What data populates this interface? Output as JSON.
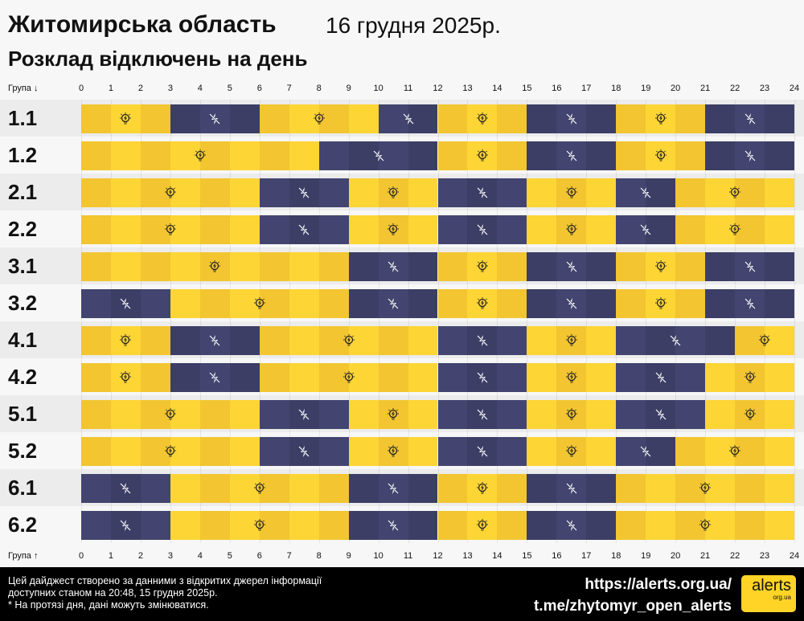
{
  "header": {
    "title": "Житомирська область",
    "date": "16 грудня 2025р.",
    "subtitle": "Розклад відключень на день"
  },
  "axis": {
    "top_label": "Група ↓",
    "bottom_label": "Група ↑",
    "ticks": [
      "0",
      "1",
      "2",
      "3",
      "4",
      "5",
      "6",
      "7",
      "8",
      "9",
      "10",
      "11",
      "12",
      "13",
      "14",
      "15",
      "16",
      "17",
      "18",
      "19",
      "20",
      "21",
      "22",
      "23",
      "24"
    ]
  },
  "colors": {
    "on": "#fdd535",
    "on_alt": "#f2c531",
    "off": "#3c3e66",
    "off_alt": "#434570"
  },
  "groups": [
    {
      "name": "1.1",
      "segments": [
        [
          0,
          3,
          "on"
        ],
        [
          3,
          6,
          "off"
        ],
        [
          6,
          10,
          "on"
        ],
        [
          10,
          12,
          "off"
        ],
        [
          12,
          15,
          "on"
        ],
        [
          15,
          18,
          "off"
        ],
        [
          18,
          21,
          "on"
        ],
        [
          21,
          24,
          "off"
        ]
      ]
    },
    {
      "name": "1.2",
      "segments": [
        [
          0,
          8,
          "on"
        ],
        [
          8,
          12,
          "off"
        ],
        [
          12,
          15,
          "on"
        ],
        [
          15,
          18,
          "off"
        ],
        [
          18,
          21,
          "on"
        ],
        [
          21,
          24,
          "off"
        ]
      ]
    },
    {
      "name": "2.1",
      "segments": [
        [
          0,
          6,
          "on"
        ],
        [
          6,
          9,
          "off"
        ],
        [
          9,
          12,
          "on"
        ],
        [
          12,
          15,
          "off"
        ],
        [
          15,
          18,
          "on"
        ],
        [
          18,
          20,
          "off"
        ],
        [
          20,
          24,
          "on"
        ]
      ]
    },
    {
      "name": "2.2",
      "segments": [
        [
          0,
          6,
          "on"
        ],
        [
          6,
          9,
          "off"
        ],
        [
          9,
          12,
          "on"
        ],
        [
          12,
          15,
          "off"
        ],
        [
          15,
          18,
          "on"
        ],
        [
          18,
          20,
          "off"
        ],
        [
          20,
          24,
          "on"
        ]
      ]
    },
    {
      "name": "3.1",
      "segments": [
        [
          0,
          9,
          "on"
        ],
        [
          9,
          12,
          "off"
        ],
        [
          12,
          15,
          "on"
        ],
        [
          15,
          18,
          "off"
        ],
        [
          18,
          21,
          "on"
        ],
        [
          21,
          24,
          "off"
        ]
      ]
    },
    {
      "name": "3.2",
      "segments": [
        [
          0,
          3,
          "off"
        ],
        [
          3,
          9,
          "on"
        ],
        [
          9,
          12,
          "off"
        ],
        [
          12,
          15,
          "on"
        ],
        [
          15,
          18,
          "off"
        ],
        [
          18,
          21,
          "on"
        ],
        [
          21,
          24,
          "off"
        ]
      ]
    },
    {
      "name": "4.1",
      "segments": [
        [
          0,
          3,
          "on"
        ],
        [
          3,
          6,
          "off"
        ],
        [
          6,
          12,
          "on"
        ],
        [
          12,
          15,
          "off"
        ],
        [
          15,
          18,
          "on"
        ],
        [
          18,
          22,
          "off"
        ],
        [
          22,
          24,
          "on"
        ]
      ]
    },
    {
      "name": "4.2",
      "segments": [
        [
          0,
          3,
          "on"
        ],
        [
          3,
          6,
          "off"
        ],
        [
          6,
          12,
          "on"
        ],
        [
          12,
          15,
          "off"
        ],
        [
          15,
          18,
          "on"
        ],
        [
          18,
          21,
          "off"
        ],
        [
          21,
          24,
          "on"
        ]
      ]
    },
    {
      "name": "5.1",
      "segments": [
        [
          0,
          6,
          "on"
        ],
        [
          6,
          9,
          "off"
        ],
        [
          9,
          12,
          "on"
        ],
        [
          12,
          15,
          "off"
        ],
        [
          15,
          18,
          "on"
        ],
        [
          18,
          21,
          "off"
        ],
        [
          21,
          24,
          "on"
        ]
      ]
    },
    {
      "name": "5.2",
      "segments": [
        [
          0,
          6,
          "on"
        ],
        [
          6,
          9,
          "off"
        ],
        [
          9,
          12,
          "on"
        ],
        [
          12,
          15,
          "off"
        ],
        [
          15,
          18,
          "on"
        ],
        [
          18,
          20,
          "off"
        ],
        [
          20,
          24,
          "on"
        ]
      ]
    },
    {
      "name": "6.1",
      "segments": [
        [
          0,
          3,
          "off"
        ],
        [
          3,
          9,
          "on"
        ],
        [
          9,
          12,
          "off"
        ],
        [
          12,
          15,
          "on"
        ],
        [
          15,
          18,
          "off"
        ],
        [
          18,
          24,
          "on"
        ]
      ]
    },
    {
      "name": "6.2",
      "segments": [
        [
          0,
          3,
          "off"
        ],
        [
          3,
          9,
          "on"
        ],
        [
          9,
          12,
          "off"
        ],
        [
          12,
          15,
          "on"
        ],
        [
          15,
          18,
          "off"
        ],
        [
          18,
          24,
          "on"
        ]
      ]
    }
  ],
  "footer": {
    "note1": "Цей дайджест створено за данними з відкритих джерел інформації",
    "note2": "доступних станом на 20:48, 15 грудня 2025р.",
    "note3": "* На протязі дня, дані можуть змінюватися.",
    "link1": "https://alerts.org.ua/",
    "link2": "t.me/zhytomyr_open_alerts",
    "logo_main": "alerts",
    "logo_sub": "org.ua"
  }
}
